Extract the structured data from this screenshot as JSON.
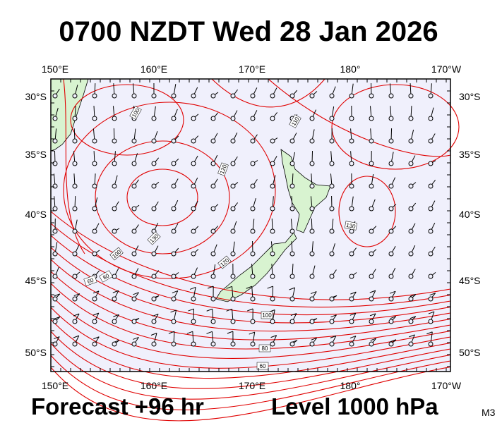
{
  "title": "0700 NZDT Wed 28 Jan 2026",
  "longitude_labels": [
    "150°E",
    "160°E",
    "170°E",
    "180°",
    "170°W"
  ],
  "latitude_labels": [
    "30°S",
    "35°S",
    "40°S",
    "45°S",
    "50°S"
  ],
  "contour_labels": [
    "100",
    "110",
    "120",
    "130",
    "120",
    "100",
    "80",
    "60",
    "130",
    "100",
    "80",
    "60"
  ],
  "footer": {
    "forecast": "Forecast +96 hr",
    "level": "Level 1000 hPa",
    "code": "M3"
  }
}
